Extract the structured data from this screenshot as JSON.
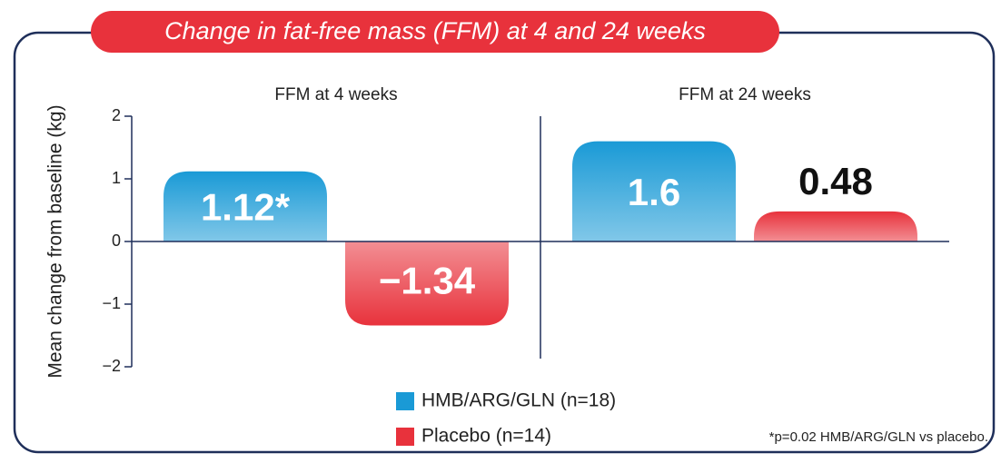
{
  "chart_data": {
    "type": "bar",
    "title": "Change in fat-free mass (FFM) at 4 and 24 weeks",
    "y_label": "Mean change from baseline (kg)",
    "categories": [
      "FFM at 4 weeks",
      "FFM at 24 weeks"
    ],
    "series": [
      {
        "name": "HMB/ARG/GLN (n=18)",
        "color": "#1a9ad6",
        "values": [
          1.12,
          1.6
        ],
        "value_labels": [
          "1.12*",
          "1.6"
        ]
      },
      {
        "name": "Placebo (n=14)",
        "color": "#e8323c",
        "values": [
          -1.34,
          0.48
        ],
        "value_labels": [
          "−1.34",
          "0.48"
        ]
      }
    ],
    "ylim": [
      -2,
      2
    ],
    "yticks": [
      {
        "value": -2,
        "label": "−2"
      },
      {
        "value": -1,
        "label": "−1"
      },
      0,
      1,
      2
    ],
    "footnote": "*p=0.02 HMB/ARG/GLN vs placebo."
  }
}
